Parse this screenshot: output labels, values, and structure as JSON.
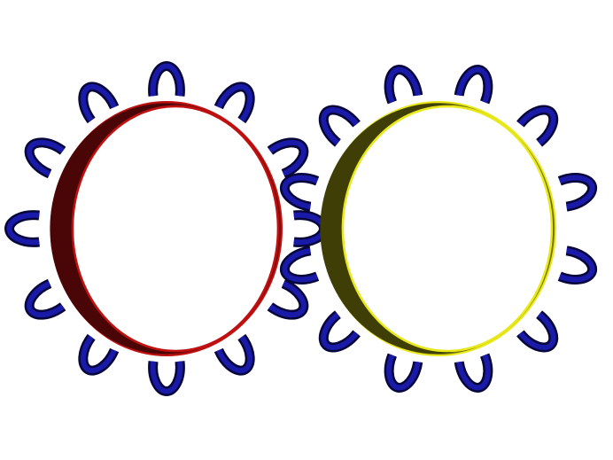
{
  "scene": {
    "background": "#ffffff"
  },
  "gears": [
    {
      "name": "gear-left",
      "ring_color": "#c01010",
      "ring_dark": "#4a0606",
      "ring_mid": "#7a0c0c",
      "tooth_color": "#1a1aa8",
      "tooth_dark": "#06063a",
      "tooth_count": 12,
      "rotation_deg": 0
    },
    {
      "name": "gear-right",
      "ring_color": "#e8e81a",
      "ring_dark": "#3e3e06",
      "ring_mid": "#6f6f10",
      "tooth_color": "#1a1aa8",
      "tooth_dark": "#06063a",
      "tooth_count": 12,
      "rotation_deg": 15
    }
  ]
}
